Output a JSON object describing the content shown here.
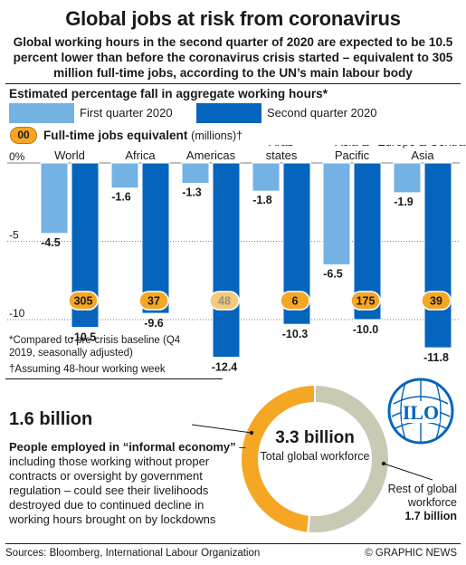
{
  "header": {
    "title": "Global jobs at risk from coronavirus",
    "subtitle": "Global working hours in the second quarter of 2020 are expected to be 10.5 percent lower than before the coronavirus crisis started – equivalent to 305 million full-time jobs, according to the UN’s main labour body"
  },
  "legend": {
    "heading": "Estimated percentage fall in aggregate working hours*",
    "q1": "First quarter 2020",
    "q2": "Second quarter 2020",
    "jobs_badge": "00",
    "jobs_label": "Full-time jobs equivalent",
    "jobs_unit": "(millions)†"
  },
  "chart_data": {
    "type": "bar",
    "categories": [
      "World",
      "Africa",
      "Americas",
      "Arab states",
      "Asia & Pacific",
      "Europe & Central Asia"
    ],
    "series": [
      {
        "name": "First quarter 2020",
        "values": [
          -4.5,
          -1.6,
          -1.3,
          -1.8,
          -6.5,
          -1.9
        ],
        "labels": [
          "-4.5",
          "-1.6",
          "-1.3",
          "-1.8",
          "-6.5",
          "-1.9"
        ],
        "color": "#74b2e4"
      },
      {
        "name": "Second quarter 2020",
        "values": [
          -10.5,
          -9.6,
          -12.4,
          -10.3,
          -10.0,
          -11.8
        ],
        "labels": [
          "-10.5",
          "-9.6",
          "-12.4",
          "-10.3",
          "-10.0",
          "-11.8"
        ],
        "color": "#0565bd"
      }
    ],
    "jobs_equivalent_millions": [
      305,
      37,
      48,
      6,
      175,
      39
    ],
    "y_ticks": [
      "0%",
      "-5",
      "-10"
    ],
    "ylim": [
      -13,
      0
    ],
    "gridlines": true
  },
  "notes": {
    "compared": "*Compared to pre-crisis baseline (Q4 2019, seasonally adjusted)",
    "assuming": "†Assuming 48-hour working week"
  },
  "informal": {
    "value": "1.6 billion",
    "lead": "People employed in “informal economy”",
    "body": " – including those working without proper contracts or oversight by government regulation – could see their livelihoods destroyed due to continued decline in working hours brought on by lockdowns"
  },
  "donut": {
    "total_value": "3.3 billion",
    "total_label": "Total global workforce",
    "informal_value": 1.6,
    "rest_value": 1.7,
    "rest_label": "Rest of global workforce",
    "rest_amount": "1.7 billion",
    "colors": {
      "informal": "#f5a623",
      "rest": "#c9c9b4"
    }
  },
  "logo": {
    "text": "ILO"
  },
  "footer": {
    "sources": "Sources: Bloomberg, International Labour Organization",
    "credit": "© GRAPHIC NEWS"
  }
}
